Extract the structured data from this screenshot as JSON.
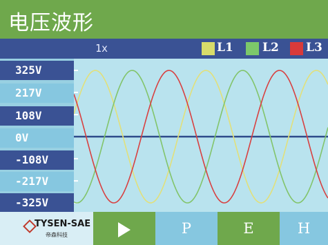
{
  "title": "电压波形",
  "zoom": "1x",
  "legend": [
    {
      "label": "L1",
      "color": "#d8dc6a"
    },
    {
      "label": "L2",
      "color": "#7cc86a"
    },
    {
      "label": "L3",
      "color": "#d83a3a"
    }
  ],
  "axis_labels": [
    "325V",
    "217V",
    "108V",
    "0V",
    "-108V",
    "-217V",
    "-325V"
  ],
  "waveform": {
    "ylim": [
      -325,
      325
    ],
    "amplitude": 325,
    "cycles_visible": 2.3,
    "phases_deg": [
      0,
      120,
      240
    ],
    "colors": [
      "#e2e07a",
      "#82c46a",
      "#d84040"
    ],
    "baseline_color": "#2c4a8a"
  },
  "bottom_bar": {
    "brand": "TYSEN-SAE",
    "brand_sub": "帝森科技",
    "buttons": [
      "P",
      "E",
      "H"
    ]
  }
}
